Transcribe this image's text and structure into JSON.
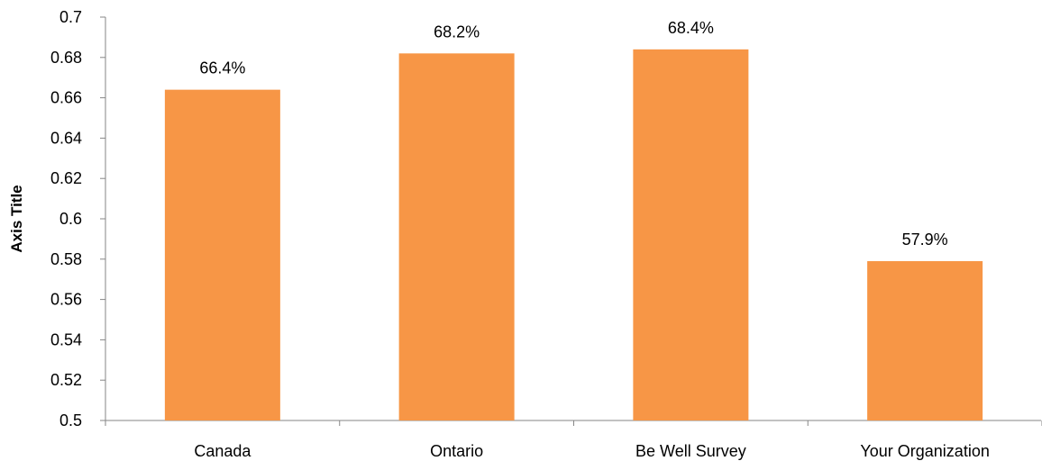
{
  "chart_data": {
    "type": "bar",
    "title": "",
    "xlabel": "",
    "ylabel": "Axis Title",
    "categories": [
      "Canada",
      "Ontario",
      "Be Well Survey",
      "Your Organization"
    ],
    "values": [
      0.664,
      0.682,
      0.684,
      0.579
    ],
    "data_labels": [
      "66.4%",
      "68.2%",
      "68.4%",
      "57.9%"
    ],
    "ylim": [
      0.5,
      0.7
    ],
    "y_ticks": [
      0.5,
      0.52,
      0.54,
      0.56,
      0.58,
      0.6,
      0.62,
      0.64,
      0.66,
      0.68,
      0.7
    ],
    "y_tick_labels": [
      "0.5",
      "0.52",
      "0.54",
      "0.56",
      "0.58",
      "0.6",
      "0.62",
      "0.64",
      "0.66",
      "0.68",
      "0.7"
    ],
    "grid": false,
    "legend": "none",
    "bar_color": "#F79646",
    "axis_color": "#868686"
  }
}
